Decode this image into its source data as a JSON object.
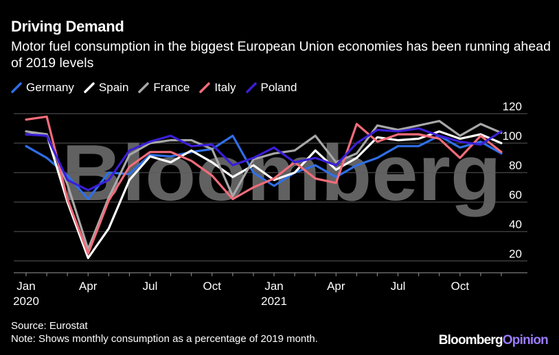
{
  "title": "Driving Demand",
  "subtitle": "Motor fuel consumption in the biggest European Union economies has been running ahead of 2019 levels",
  "watermark": "Bloomberg",
  "footer": {
    "source": "Source: Eurostat",
    "note": "Note: Shows monthly consumption as a percentage of 2019 month."
  },
  "brand": {
    "main": "Bloomberg",
    "accent": "Opinion"
  },
  "chart_data": {
    "type": "line",
    "title": "Driving Demand",
    "xlabel": "",
    "ylabel": "",
    "ylim": [
      12,
      126
    ],
    "yticks": [
      20,
      40,
      60,
      80,
      100,
      120
    ],
    "grid": true,
    "legend_position": "top-left",
    "x": [
      "Jan 2020",
      "Feb 2020",
      "Mar 2020",
      "Apr 2020",
      "May 2020",
      "Jun 2020",
      "Jul 2020",
      "Aug 2020",
      "Sep 2020",
      "Oct 2020",
      "Nov 2020",
      "Dec 2020",
      "Jan 2021",
      "Feb 2021",
      "Mar 2021",
      "Apr 2021",
      "May 2021",
      "Jun 2021",
      "Jul 2021",
      "Aug 2021",
      "Sep 2021",
      "Oct 2021",
      "Nov 2021",
      "Dec 2021"
    ],
    "xtick_labels": [
      {
        "index": 0,
        "month": "Jan",
        "year": "2020"
      },
      {
        "index": 3,
        "month": "Apr",
        "year": ""
      },
      {
        "index": 6,
        "month": "Jul",
        "year": ""
      },
      {
        "index": 9,
        "month": "Oct",
        "year": ""
      },
      {
        "index": 12,
        "month": "Jan",
        "year": "2021"
      },
      {
        "index": 15,
        "month": "Apr",
        "year": ""
      },
      {
        "index": 18,
        "month": "Jul",
        "year": ""
      },
      {
        "index": 21,
        "month": "Oct",
        "year": ""
      }
    ],
    "series": [
      {
        "name": "Germany",
        "color": "#2f6fe8",
        "values": [
          98,
          90,
          78,
          62,
          80,
          79,
          92,
          91,
          94,
          96,
          105,
          80,
          71,
          80,
          85,
          77,
          85,
          90,
          98,
          98,
          105,
          97,
          101,
          93
        ]
      },
      {
        "name": "Spain",
        "color": "#ffffff",
        "values": [
          106,
          106,
          60,
          22,
          42,
          75,
          91,
          87,
          95,
          87,
          77,
          85,
          75,
          80,
          95,
          82,
          90,
          104,
          102,
          103,
          108,
          103,
          106,
          100
        ]
      },
      {
        "name": "France",
        "color": "#a8a8a8",
        "values": [
          108,
          106,
          72,
          28,
          63,
          92,
          100,
          102,
          102,
          96,
          64,
          89,
          93,
          95,
          105,
          87,
          93,
          112,
          109,
          112,
          115,
          105,
          113,
          107
        ]
      },
      {
        "name": "Italy",
        "color": "#f36c7a",
        "values": [
          116,
          118,
          62,
          25,
          61,
          84,
          94,
          94,
          88,
          78,
          62,
          70,
          76,
          87,
          76,
          73,
          113,
          101,
          106,
          106,
          103,
          90,
          105,
          94
        ]
      },
      {
        "name": "Poland",
        "color": "#3a1fd6",
        "values": [
          106,
          105,
          75,
          68,
          75,
          95,
          101,
          105,
          98,
          99,
          85,
          90,
          97,
          87,
          90,
          85,
          100,
          109,
          108,
          110,
          105,
          101,
          99,
          108
        ]
      }
    ]
  }
}
